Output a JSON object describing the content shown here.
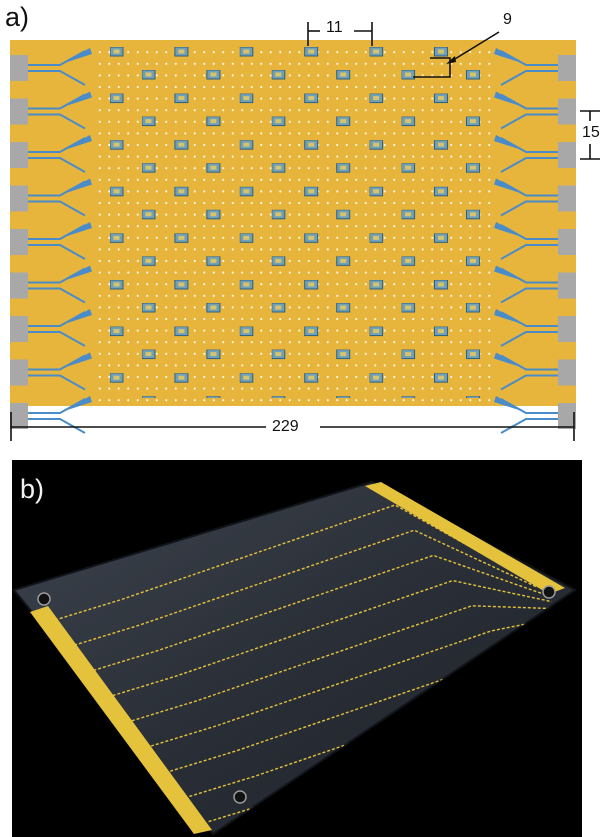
{
  "panel_a": {
    "label": "a)",
    "dimensions": {
      "pitch_x": "11",
      "element_size": "9",
      "pitch_y": "15",
      "board_width": "229"
    },
    "colors": {
      "substrate": "#E8B53C",
      "feed_line": "#4A8CC9",
      "pad": "#A8A8A8",
      "via": "#FFFFFF"
    }
  },
  "panel_b": {
    "label": "b)",
    "colors": {
      "board": "#2B3038",
      "gold": "#E5C23C",
      "background": "#000000"
    }
  }
}
